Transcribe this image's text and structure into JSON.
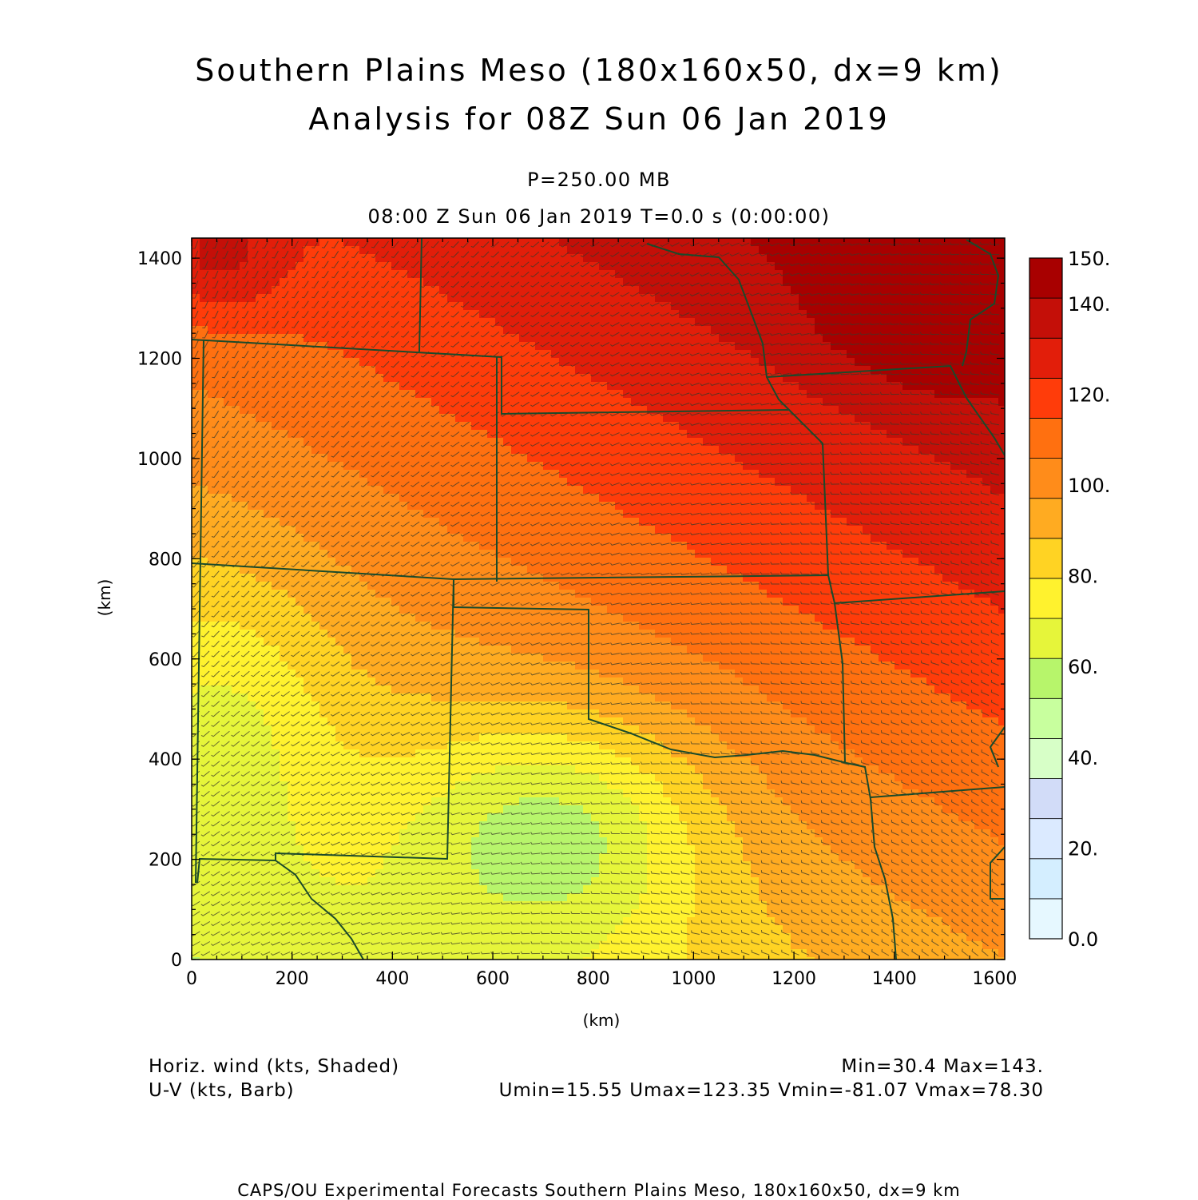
{
  "header": {
    "title_line1": "Southern Plains Meso (180x160x50, dx=9 km)",
    "title_line2": "Analysis for 08Z Sun 06 Jan 2019",
    "level": "P=250.00 MB",
    "time": "08:00 Z Sun 06 Jan 2019   T=0.0 s (0:00:00)"
  },
  "axes": {
    "x_unit": "(km)",
    "y_unit": "(km)",
    "x_ticks": [
      "0",
      "200",
      "400",
      "600",
      "800",
      "1000",
      "1200",
      "1400",
      "1600"
    ],
    "y_ticks": [
      "0",
      "200",
      "400",
      "600",
      "800",
      "1000",
      "1200",
      "1400"
    ]
  },
  "colorbar": {
    "labels": [
      "0.0",
      "20.",
      "40.",
      "60.",
      "80.",
      "100.",
      "120.",
      "140.",
      "150."
    ],
    "colors": [
      "#e6f8ff",
      "#d4eeff",
      "#dbeaff",
      "#d2dcf8",
      "#d7ffc7",
      "#c8ff9e",
      "#b7f56b",
      "#e6f53a",
      "#fff22e",
      "#ffd323",
      "#ffab21",
      "#ff8c1a",
      "#ff7010",
      "#ff3c0a",
      "#e21e0a",
      "#c40f08",
      "#a80000"
    ]
  },
  "footer": {
    "left_line1": "Horiz. wind (kts, Shaded)",
    "left_line2": "U-V (kts, Barb)",
    "right_line1": "Min=30.4 Max=143.",
    "right_line2": "Umin=15.55 Umax=123.35 Vmin=-81.07 Vmax=78.30",
    "credit": "CAPS/OU Experimental Forecasts  Southern Plains Meso, 180x160x50, dx=9 km"
  }
}
